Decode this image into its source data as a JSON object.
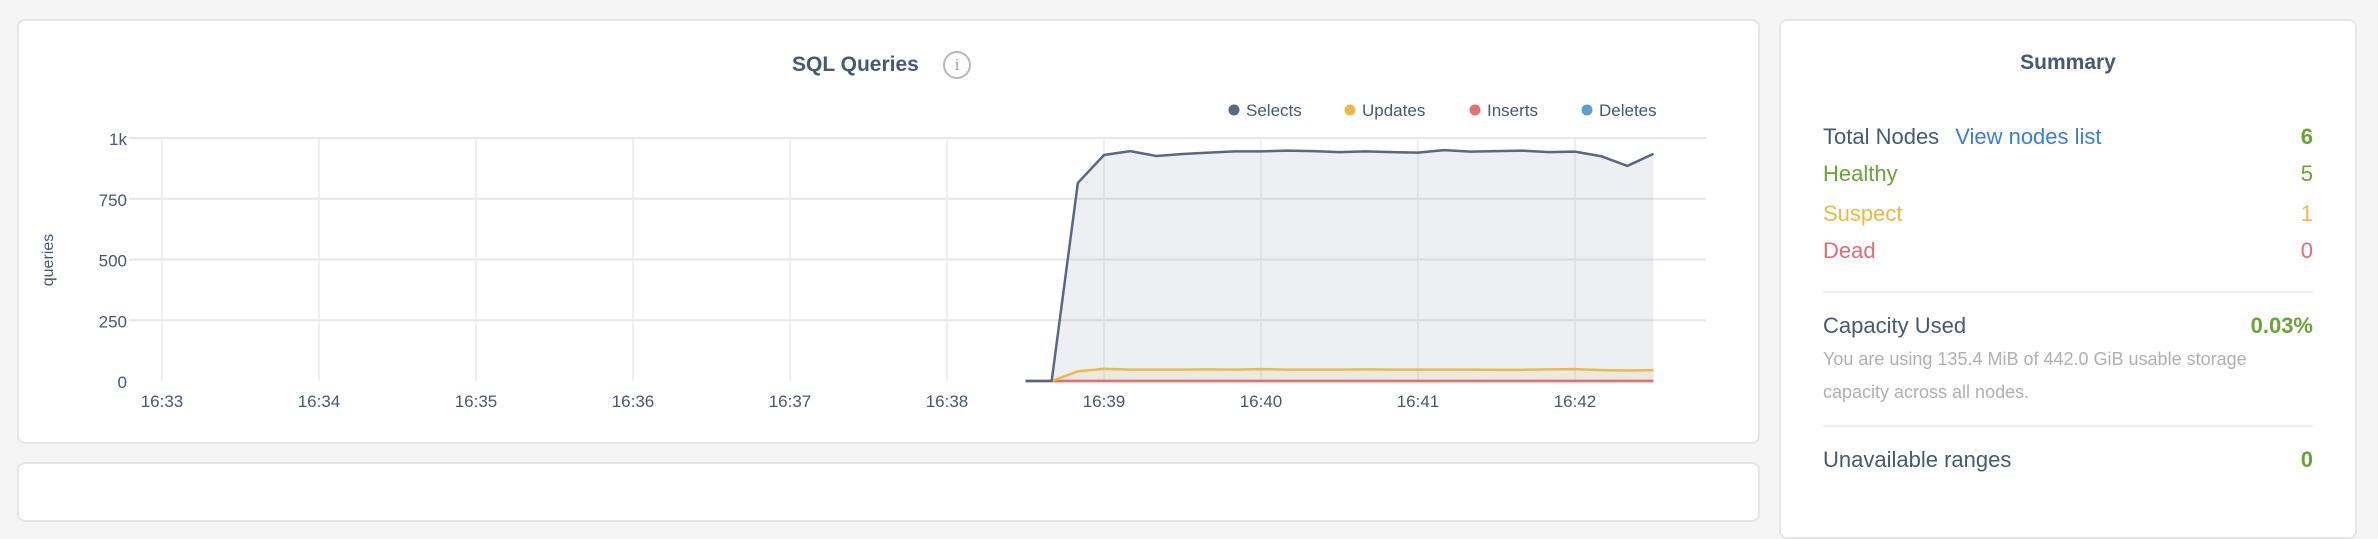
{
  "chart_panel": {
    "title": "SQL Queries",
    "info_icon": "info-circle-icon"
  },
  "chart_data": {
    "type": "area",
    "title": "SQL Queries",
    "ylabel": "queries",
    "xlabel": "",
    "ylim": [
      0,
      1000
    ],
    "y_ticks": [
      "0",
      "250",
      "500",
      "750",
      "1k"
    ],
    "y_tick_values": [
      0,
      250,
      500,
      750,
      1000
    ],
    "x_ticks": [
      "16:33",
      "16:34",
      "16:35",
      "16:36",
      "16:37",
      "16:38",
      "16:39",
      "16:40",
      "16:41",
      "16:42"
    ],
    "xlim": [
      "16:32:43",
      "16:42:58"
    ],
    "grid": true,
    "legend_position": "top-right",
    "x": [
      "16:38:30",
      "16:38:40",
      "16:38:50",
      "16:39:00",
      "16:39:10",
      "16:39:20",
      "16:39:30",
      "16:39:40",
      "16:39:50",
      "16:40:00",
      "16:40:10",
      "16:40:20",
      "16:40:30",
      "16:40:40",
      "16:40:50",
      "16:41:00",
      "16:41:10",
      "16:41:20",
      "16:41:30",
      "16:41:40",
      "16:41:50",
      "16:42:00",
      "16:42:10",
      "16:42:20",
      "16:42:30"
    ],
    "series": [
      {
        "name": "Selects",
        "color": "#5a6782",
        "values": [
          0,
          0,
          815,
          930,
          946,
          926,
          934,
          940,
          945,
          945,
          948,
          946,
          942,
          945,
          942,
          940,
          950,
          944,
          946,
          948,
          942,
          944,
          925,
          885,
          935
        ]
      },
      {
        "name": "Updates",
        "color": "#ecbb47",
        "values": [
          0,
          0,
          40,
          50,
          47,
          47,
          47,
          48,
          47,
          49,
          47,
          47,
          47,
          48,
          47,
          47,
          47,
          47,
          46,
          46,
          48,
          49,
          45,
          43,
          45
        ]
      },
      {
        "name": "Inserts",
        "color": "#e4716d",
        "values": [
          0,
          0,
          0,
          0,
          0,
          0,
          0,
          0,
          0,
          0,
          0,
          0,
          0,
          0,
          0,
          0,
          0,
          0,
          0,
          0,
          0,
          0,
          0,
          0,
          0
        ]
      },
      {
        "name": "Deletes",
        "color": "#5f9ed0",
        "values": [
          0,
          0,
          0,
          0,
          0,
          0,
          0,
          0,
          0,
          0,
          0,
          0,
          0,
          0,
          0,
          0,
          0,
          0,
          0,
          0,
          0,
          0,
          0,
          0,
          0
        ]
      }
    ]
  },
  "summary": {
    "title": "Summary",
    "total_nodes_label": "Total Nodes",
    "view_nodes_link": "View nodes list",
    "total_nodes_value": "6",
    "healthy_label": "Healthy",
    "healthy_value": "5",
    "suspect_label": "Suspect",
    "suspect_value": "1",
    "dead_label": "Dead",
    "dead_value": "0",
    "capacity_label": "Capacity Used",
    "capacity_value": "0.03%",
    "capacity_desc": "You are using 135.4 MiB of 442.0 GiB usable storage capacity across all nodes.",
    "unavailable_label": "Unavailable ranges",
    "unavailable_value": "0",
    "colors": {
      "text": "#475872",
      "healthy": "#6aa336",
      "suspect": "#efb93f",
      "dead": "#e06c75",
      "link": "#3a7de1"
    }
  }
}
